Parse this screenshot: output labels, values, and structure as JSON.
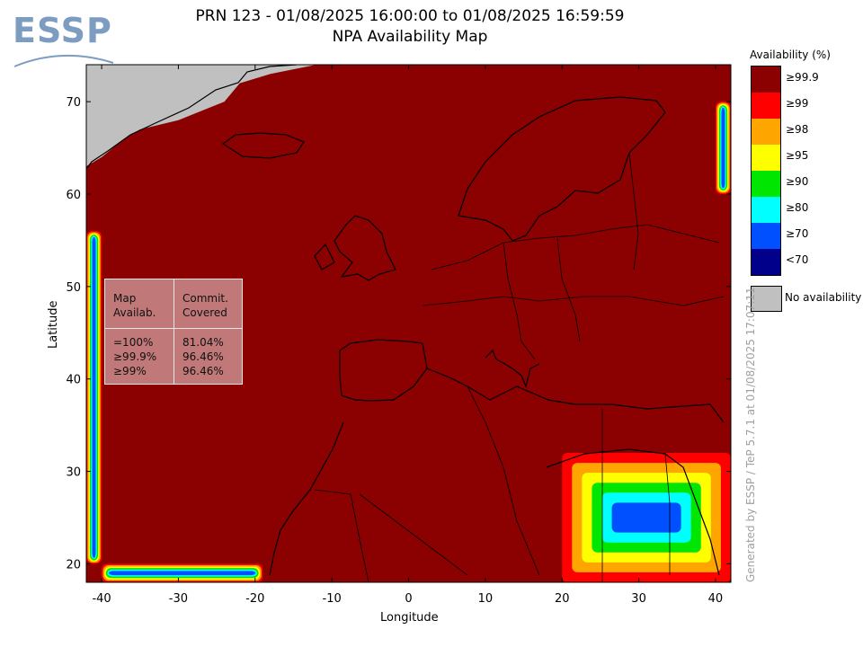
{
  "logo": {
    "text": "ESSP"
  },
  "title": {
    "line1": "PRN 123 - 01/08/2025 16:00:00 to 01/08/2025 16:59:59",
    "line2": "NPA Availability Map"
  },
  "credit": "Generated by ESSP / TeP 5.7.1 at 01/08/2025 17:07:11",
  "stats_table": {
    "header_col1": "Map\nAvailab.",
    "header_col2": "Commit.\nCovered",
    "col1_values": "=100%\n≥99.9%\n≥99%",
    "col2_values": "81.04%\n96.46%\n96.46%"
  },
  "legend": {
    "title": "Availability (%)",
    "items": [
      {
        "label": "≥99.9",
        "color": "#8b0000"
      },
      {
        "label": "≥99",
        "color": "#ff0000"
      },
      {
        "label": "≥98",
        "color": "#ffa500"
      },
      {
        "label": "≥95",
        "color": "#ffff00"
      },
      {
        "label": "≥90",
        "color": "#00e600"
      },
      {
        "label": "≥80",
        "color": "#00ffff"
      },
      {
        "label": "≥70",
        "color": "#0050ff"
      },
      {
        "label": "<70",
        "color": "#00008b"
      }
    ],
    "no_data_label": "No availability",
    "no_data_color": "#c0c0c0"
  },
  "chart_data": {
    "type": "heatmap",
    "title": "NPA Availability Map",
    "xlabel": "Longitude",
    "ylabel": "Latitude",
    "xlim": [
      -42,
      42
    ],
    "ylim": [
      18,
      74
    ],
    "xticks": [
      -40,
      -30,
      -20,
      -10,
      0,
      10,
      20,
      30,
      40
    ],
    "yticks": [
      20,
      30,
      40,
      50,
      60,
      70
    ],
    "background_value": "≥99.9",
    "background_color": "#8b0000",
    "no_availability_region": [
      [
        -42,
        63
      ],
      [
        -40,
        64
      ],
      [
        -37,
        66
      ],
      [
        -35,
        67
      ],
      [
        -30,
        68
      ],
      [
        -24,
        70
      ],
      [
        -22,
        72
      ],
      [
        -18,
        73
      ],
      [
        -12,
        74
      ],
      [
        -42,
        74
      ]
    ],
    "edge_degradation": [
      {
        "region": "western edge",
        "lon": [
          -42,
          -40
        ],
        "lat": [
          20,
          56
        ]
      },
      {
        "region": "southern edge",
        "lon": [
          -40,
          -19
        ],
        "lat": [
          18,
          20
        ]
      },
      {
        "region": "south-east corner",
        "lon": [
          20,
          42
        ],
        "lat": [
          18,
          32
        ]
      },
      {
        "region": "north-east edge",
        "lon": [
          40,
          42
        ],
        "lat": [
          60,
          70
        ]
      }
    ]
  }
}
